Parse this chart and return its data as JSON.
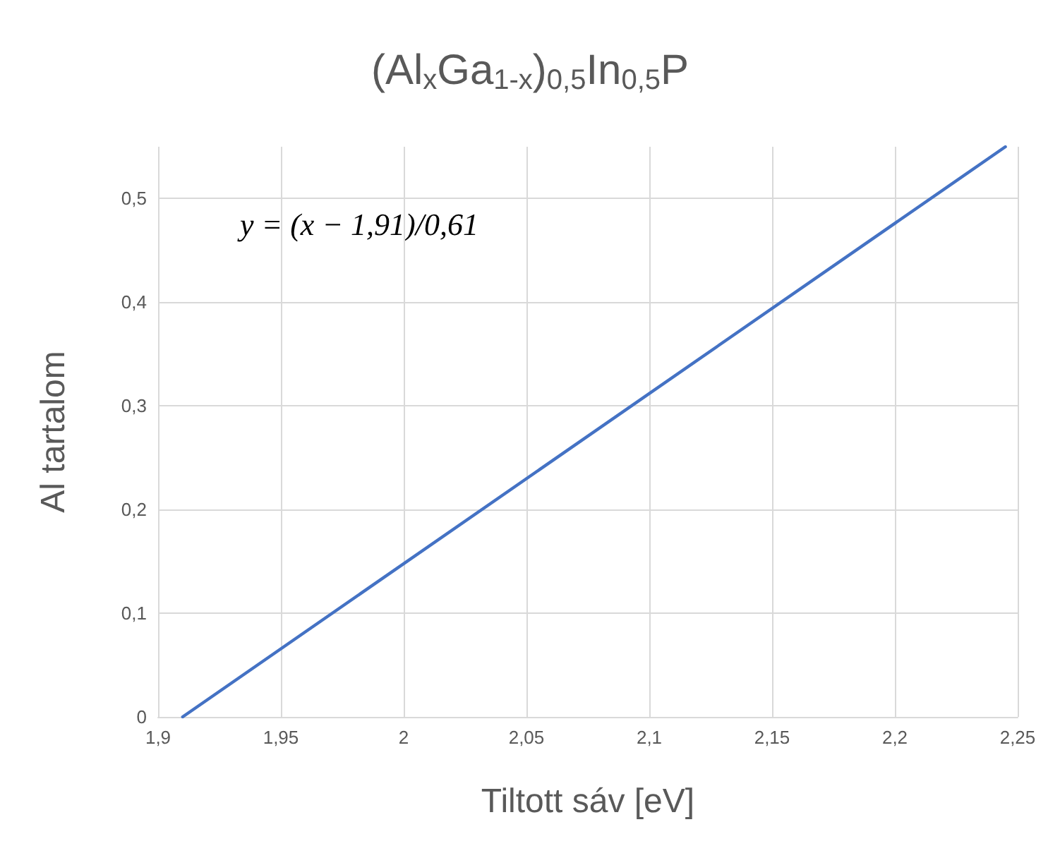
{
  "chart_data": {
    "type": "line",
    "title": "(Al$_{x}$Ga$_{1-x}$)$_{0,5}$In$_{0,5}$P",
    "xlabel": "Tiltott sáv [eV]",
    "ylabel": "Al tartalom",
    "annotations": [
      "y = (x − 1,91)/0,61"
    ],
    "series": [
      {
        "color": "#4472c4",
        "x": [
          1.91,
          2.245
        ],
        "values": [
          0,
          0.55
        ]
      }
    ],
    "xlim": [
      1.9,
      2.25
    ],
    "xticks": [
      {
        "value": 1.9,
        "label": "1,9"
      },
      {
        "value": 1.95,
        "label": "1,95"
      },
      {
        "value": 2,
        "label": "2"
      },
      {
        "value": 2.05,
        "label": "2,05"
      },
      {
        "value": 2.1,
        "label": "2,1"
      },
      {
        "value": 2.15,
        "label": "2,15"
      },
      {
        "value": 2.2,
        "label": "2,2"
      },
      {
        "value": 2.25,
        "label": "2,25"
      }
    ],
    "ylim": [
      0,
      0.55
    ],
    "yticks": [
      {
        "value": 0,
        "label": "0"
      },
      {
        "value": 0.1,
        "label": "0,1"
      },
      {
        "value": 0.2,
        "label": "0,2"
      },
      {
        "value": 0.3,
        "label": "0,3"
      },
      {
        "value": 0.4,
        "label": "0,4"
      },
      {
        "value": 0.5,
        "label": "0,5"
      }
    ],
    "grid": true,
    "marker": "none",
    "line_style": "solid"
  }
}
